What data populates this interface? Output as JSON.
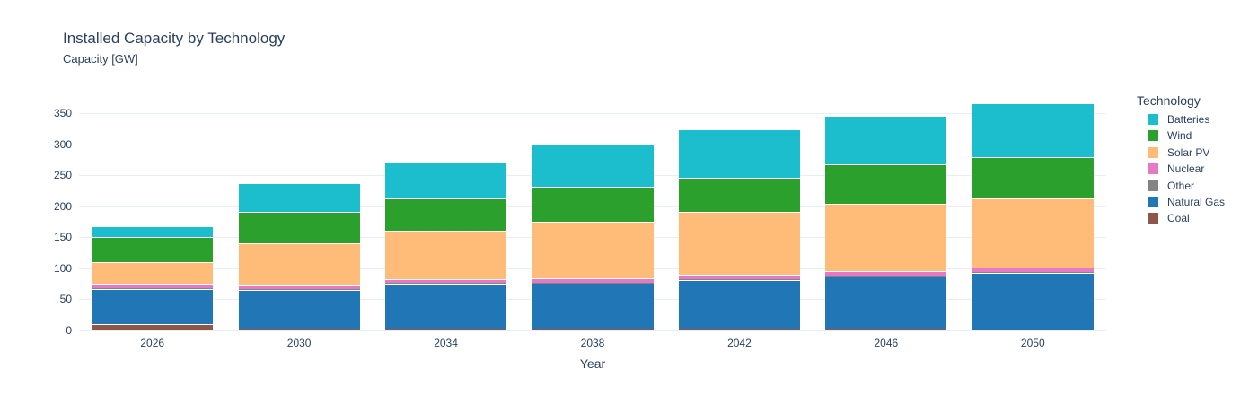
{
  "header": {
    "title": "Installed Capacity by Technology",
    "subtitle": "Capacity [GW]"
  },
  "axes": {
    "x_title": "Year",
    "y_ticks": [
      0,
      50,
      100,
      150,
      200,
      250,
      300,
      350
    ]
  },
  "legend": {
    "title": "Technology",
    "items": [
      "Batteries",
      "Wind",
      "Solar PV",
      "Nuclear",
      "Other",
      "Natural Gas",
      "Coal"
    ]
  },
  "colors": {
    "batteries": "#1cbdcd",
    "wind": "#2ca02c",
    "solar_pv": "#ffbb78",
    "nuclear": "#e679c4",
    "other": "#848484",
    "natural_gas": "#2176b5",
    "coal": "#8f574a",
    "text": "#2a3f5f",
    "gridline": "#e9eef6"
  },
  "chart_data": {
    "type": "bar",
    "stacked": true,
    "title": "Installed Capacity by Technology",
    "xlabel": "Year",
    "ylabel": "Capacity [GW]",
    "categories": [
      "2026",
      "2030",
      "2034",
      "2038",
      "2042",
      "2046",
      "2050"
    ],
    "series": [
      {
        "name": "Batteries",
        "color": "#1cbdcd",
        "values": [
          18,
          46,
          58,
          68,
          78,
          78,
          87
        ]
      },
      {
        "name": "Wind",
        "color": "#2ca02c",
        "values": [
          40,
          51,
          52,
          56,
          55,
          63,
          66
        ]
      },
      {
        "name": "Solar PV",
        "color": "#ffbb78",
        "values": [
          35,
          67,
          78,
          91,
          102,
          109,
          112
        ]
      },
      {
        "name": "Nuclear",
        "color": "#e679c4",
        "values": [
          7,
          7,
          7,
          7,
          7,
          7,
          7
        ]
      },
      {
        "name": "Other",
        "color": "#848484",
        "values": [
          1,
          1,
          1,
          1,
          1,
          1,
          1
        ]
      },
      {
        "name": "Natural Gas",
        "color": "#2176b5",
        "values": [
          57,
          62,
          72,
          73,
          79,
          86,
          93
        ]
      },
      {
        "name": "Coal",
        "color": "#8f574a",
        "values": [
          10,
          3,
          3,
          3,
          2,
          1,
          0
        ]
      }
    ],
    "ylim": [
      0,
      378
    ],
    "grid": true,
    "legend_title": "Technology",
    "legend_position": "right"
  }
}
